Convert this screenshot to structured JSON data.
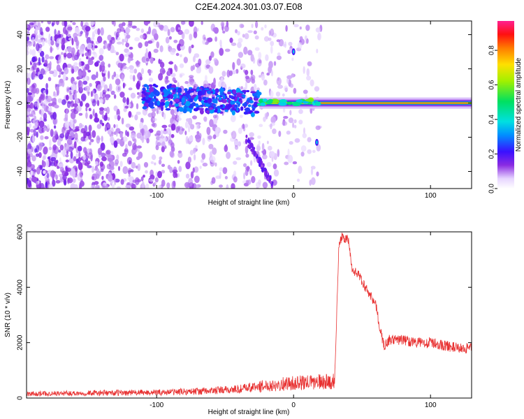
{
  "chart_data": [
    {
      "type": "heatmap",
      "title": "C2E4.2024.301.03.07.E08",
      "xlabel": "Height of straight line (km)",
      "ylabel": "Frequency (Hz)",
      "xlim": [
        -195,
        130
      ],
      "ylim": [
        -50,
        48
      ],
      "xticks": [
        -100,
        0,
        100
      ],
      "xtick_labels": [
        "-100",
        "0",
        "100"
      ],
      "yticks": [
        -40,
        -20,
        0,
        20,
        40
      ],
      "ytick_labels": [
        "-40",
        "-20",
        "0",
        "20",
        "40"
      ],
      "colorbar": {
        "label": "Normalized spectral amplitude",
        "range": [
          0.0,
          0.97
        ],
        "ticks": [
          0.0,
          0.2,
          0.4,
          0.6,
          0.8
        ],
        "tick_labels": [
          "0.0",
          "0.2",
          "0.4",
          "0.6",
          "0.8"
        ],
        "colormap": "rainbow (white, purple, blue, cyan, green, yellow, orange, red, magenta)"
      },
      "features": [
        {
          "name": "noise",
          "x_range": [
            -195,
            20
          ],
          "freq_range": [
            -50,
            48
          ],
          "amplitude": "low"
        },
        {
          "name": "scattered band",
          "x_range": [
            -110,
            -25
          ],
          "freq_center": 4,
          "amplitude": "0.1-0.3"
        },
        {
          "name": "narrow tone",
          "x_range": [
            -25,
            130
          ],
          "freq_center": 0,
          "amplitude": "0.4-0.9"
        },
        {
          "name": "lower tail",
          "x_range": [
            -35,
            -15
          ],
          "freq_range": [
            -45,
            -20
          ],
          "amplitude": "low"
        },
        {
          "name": "spot",
          "x": 0,
          "freq": 30
        },
        {
          "name": "spot",
          "x": 17,
          "freq": -23
        }
      ]
    },
    {
      "type": "line",
      "xlabel": "Height of straight line (km)",
      "ylabel": "SNR (10 * v/v)",
      "xlim": [
        -195,
        130
      ],
      "ylim": [
        0,
        6000
      ],
      "xticks": [
        -100,
        0,
        100
      ],
      "xtick_labels": [
        "-100",
        "0",
        "100"
      ],
      "yticks": [
        0,
        2000,
        4000,
        6000
      ],
      "ytick_labels": [
        "0",
        "2000",
        "4000",
        "6000"
      ],
      "series": [
        {
          "color": "#e83030",
          "x": [
            -195,
            -150,
            -100,
            -60,
            -40,
            -20,
            -5,
            10,
            25,
            30,
            33,
            35,
            40,
            43,
            47,
            50,
            55,
            60,
            63,
            66,
            70,
            80,
            90,
            100,
            110,
            120,
            130
          ],
          "y": [
            150,
            180,
            200,
            260,
            320,
            450,
            520,
            560,
            600,
            600,
            5500,
            5800,
            5700,
            4600,
            4500,
            4200,
            3800,
            3400,
            2500,
            1900,
            2100,
            2100,
            2000,
            2000,
            1900,
            1800,
            1800
          ]
        }
      ]
    }
  ]
}
